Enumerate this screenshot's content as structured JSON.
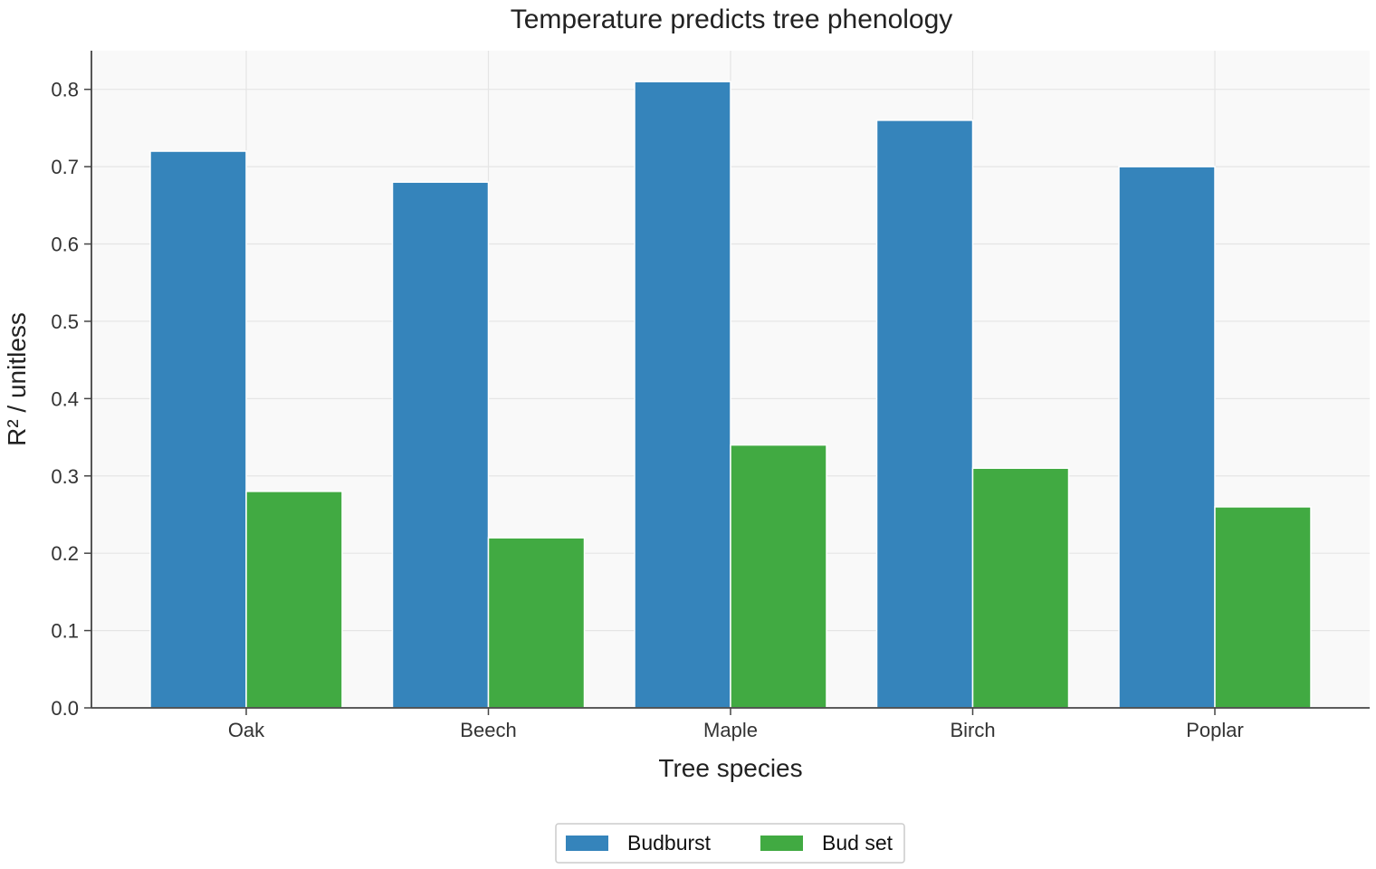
{
  "chart_data": {
    "type": "bar",
    "title": "Temperature predicts tree phenology",
    "xlabel": "Tree species",
    "ylabel": "R² / unitless",
    "categories": [
      "Oak",
      "Beech",
      "Maple",
      "Birch",
      "Poplar"
    ],
    "series": [
      {
        "name": "Budburst",
        "color": "#3584bb",
        "values": [
          0.72,
          0.68,
          0.81,
          0.76,
          0.7
        ]
      },
      {
        "name": "Bud set",
        "color": "#41aa42",
        "values": [
          0.28,
          0.22,
          0.34,
          0.31,
          0.26
        ]
      }
    ],
    "ylim": [
      0,
      0.85
    ],
    "yticks": [
      "0.0",
      "0.1",
      "0.2",
      "0.3",
      "0.4",
      "0.5",
      "0.6",
      "0.7",
      "0.8"
    ],
    "grid": true,
    "legend_position": "bottom-center",
    "colors": {
      "plot_background": "#f9f9f9",
      "grid": "#e5e5e5",
      "axis": "#444444"
    }
  }
}
